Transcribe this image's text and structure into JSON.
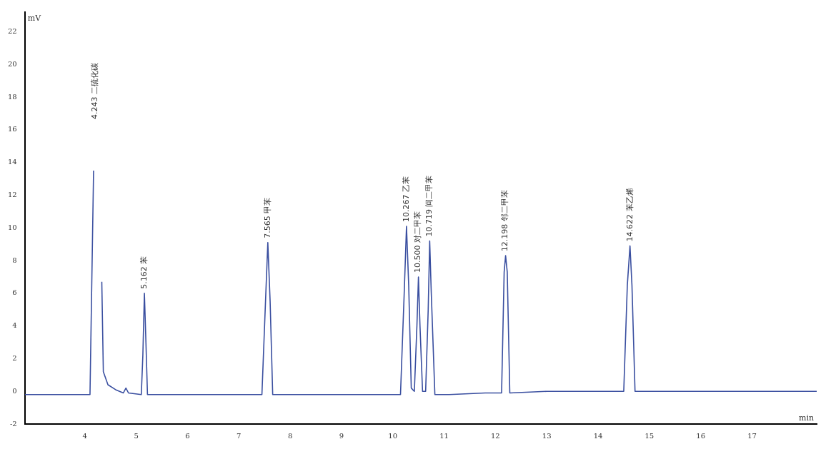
{
  "chart_data": {
    "type": "line",
    "xlabel": "min",
    "ylabel": "mV",
    "xlim": [
      2.83,
      18.26
    ],
    "ylim": [
      -2,
      23.2
    ],
    "xticks": [
      4,
      5,
      6,
      7,
      8,
      9,
      10,
      11,
      12,
      13,
      14,
      15,
      16,
      17
    ],
    "yticks": [
      -2,
      0,
      2,
      4,
      6,
      8,
      10,
      12,
      14,
      16,
      18,
      20,
      22
    ],
    "grid": false,
    "legend": false,
    "marker": "none",
    "line_style": "solid",
    "series": [
      {
        "color": "#3a4fa0",
        "x": [
          2.83,
          4.1,
          4.17,
          4.2,
          4.3,
          4.33,
          4.36,
          4.45,
          4.6,
          4.75,
          4.8,
          4.85,
          5.1,
          5.13,
          5.16,
          5.19,
          5.22,
          5.25,
          7.45,
          7.52,
          7.565,
          7.61,
          7.66,
          10.15,
          10.22,
          10.267,
          10.31,
          10.36,
          10.42,
          10.47,
          10.5,
          10.53,
          10.58,
          10.64,
          10.69,
          10.719,
          10.75,
          10.82,
          11.1,
          11.8,
          12.12,
          12.17,
          12.198,
          12.23,
          12.28,
          13.0,
          13.4,
          14.5,
          14.57,
          14.622,
          14.66,
          14.72,
          16.0,
          17.8,
          18.26
        ],
        "values": [
          -0.2,
          -0.2,
          13.5,
          null,
          null,
          6.7,
          1.2,
          0.4,
          0.1,
          -0.1,
          0.2,
          -0.1,
          -0.2,
          2.2,
          6.0,
          3.0,
          -0.2,
          -0.2,
          -0.2,
          5.5,
          9.1,
          5.5,
          -0.2,
          -0.2,
          5.8,
          10.1,
          6.5,
          0.2,
          0.0,
          4.0,
          7.0,
          4.0,
          0.0,
          0.0,
          5.0,
          9.2,
          6.0,
          -0.2,
          -0.2,
          -0.1,
          -0.1,
          7.3,
          8.3,
          7.3,
          -0.1,
          0.0,
          0.0,
          0.0,
          6.5,
          8.9,
          6.5,
          0.0,
          0.0,
          0.0,
          0.0
        ]
      }
    ],
    "annotations": [
      "4.243 二硫化碳",
      {
        "text": "5.162 苯",
        "x": 5.162,
        "y": 6.0
      },
      {
        "text": "7.565 甲苯",
        "x": 7.565,
        "y": 9.1
      },
      {
        "text": "10.267 乙苯",
        "x": 10.267,
        "y": 10.1
      },
      {
        "text": "10.500 对二甲苯",
        "x": 10.5,
        "y": 7.0
      },
      {
        "text": "10.719 间二甲苯",
        "x": 10.719,
        "y": 9.2
      },
      {
        "text": "12.198 邻二甲苯",
        "x": 12.198,
        "y": 8.3
      },
      {
        "text": "14.622 苯乙烯",
        "x": 14.622,
        "y": 8.9
      }
    ]
  }
}
